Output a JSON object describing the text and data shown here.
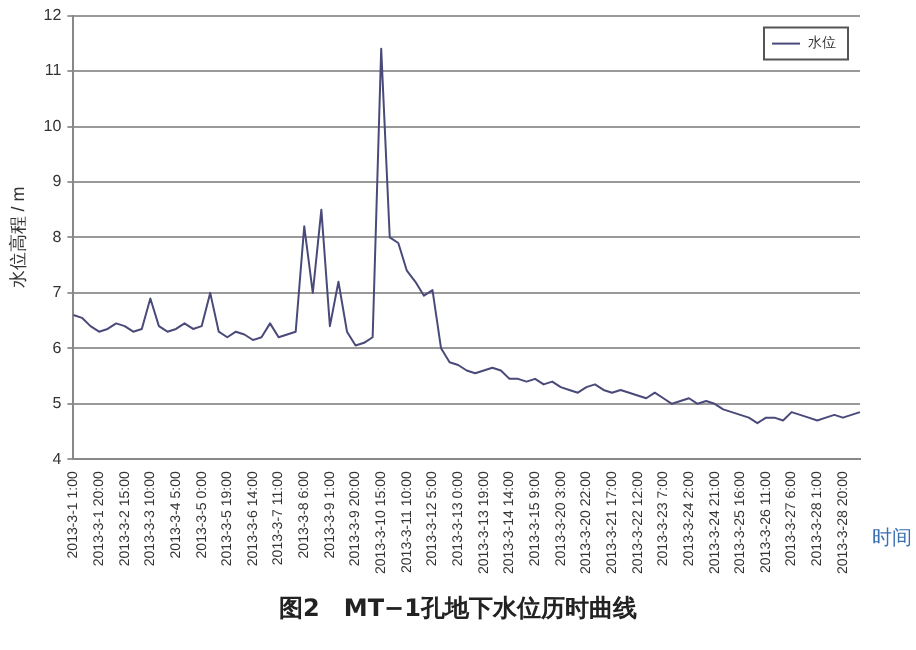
{
  "chart_data": {
    "type": "line",
    "title": "图2　MT−1孔地下水位历时曲线",
    "ylabel": "水位高程 / m",
    "xlabel": "时间",
    "categories": [
      "2013-3-1 1:00",
      null,
      null,
      "2013-3-1 20:00",
      null,
      null,
      "2013-3-2 15:00",
      null,
      null,
      "2013-3-3 10:00",
      null,
      null,
      "2013-3-4 5:00",
      null,
      null,
      "2013-3-5 0:00",
      null,
      null,
      "2013-3-5 19:00",
      null,
      null,
      "2013-3-6 14:00",
      null,
      null,
      "2013-3-7 11:00",
      null,
      null,
      "2013-3-8 6:00",
      null,
      null,
      "2013-3-9 1:00",
      null,
      null,
      "2013-3-9 20:00",
      null,
      null,
      "2013-3-10 15:00",
      null,
      null,
      "2013-3-11 10:00",
      null,
      null,
      "2013-3-12 5:00",
      null,
      null,
      "2013-3-13 0:00",
      null,
      null,
      "2013-3-13 19:00",
      null,
      null,
      "2013-3-14 14:00",
      null,
      null,
      "2013-3-15 9:00",
      null,
      null,
      "2013-3-20 3:00",
      null,
      null,
      "2013-3-20 22:00",
      null,
      null,
      "2013-3-21 17:00",
      null,
      null,
      "2013-3-22 12:00",
      null,
      null,
      "2013-3-23 7:00",
      null,
      null,
      "2013-3-24 2:00",
      null,
      null,
      "2013-3-24 21:00",
      null,
      null,
      "2013-3-25 16:00",
      null,
      null,
      "2013-3-26 11:00",
      null,
      null,
      "2013-3-27 6:00",
      null,
      null,
      "2013-3-28 1:00",
      null,
      null,
      "2013-3-28 20:00",
      null,
      null
    ],
    "series": [
      {
        "name": "水位",
        "color": "#4a4a7a",
        "values": [
          6.6,
          6.55,
          6.4,
          6.3,
          6.35,
          6.45,
          6.4,
          6.3,
          6.35,
          6.9,
          6.4,
          6.3,
          6.35,
          6.45,
          6.35,
          6.4,
          7.0,
          6.3,
          6.2,
          6.3,
          6.25,
          6.15,
          6.2,
          6.45,
          6.2,
          6.25,
          6.3,
          8.2,
          7.0,
          8.5,
          6.4,
          7.2,
          6.3,
          6.05,
          6.1,
          6.2,
          11.4,
          8.0,
          7.9,
          7.4,
          7.2,
          6.95,
          7.05,
          6.0,
          5.75,
          5.7,
          5.6,
          5.55,
          5.6,
          5.65,
          5.6,
          5.45,
          5.45,
          5.4,
          5.45,
          5.35,
          5.4,
          5.3,
          5.25,
          5.2,
          5.3,
          5.35,
          5.25,
          5.2,
          5.25,
          5.2,
          5.15,
          5.1,
          5.2,
          5.1,
          5.0,
          5.05,
          5.1,
          5.0,
          5.05,
          5.0,
          4.9,
          4.85,
          4.8,
          4.75,
          4.65,
          4.75,
          4.75,
          4.7,
          4.85,
          4.8,
          4.75,
          4.7,
          4.75,
          4.8,
          4.75,
          4.8,
          4.85
        ]
      }
    ],
    "ylim": [
      4,
      12
    ],
    "yticks": [
      4,
      5,
      6,
      7,
      8,
      9,
      10,
      11,
      12
    ],
    "grid": "y",
    "legend": "top right",
    "marker": "none",
    "line_style": "solid"
  }
}
